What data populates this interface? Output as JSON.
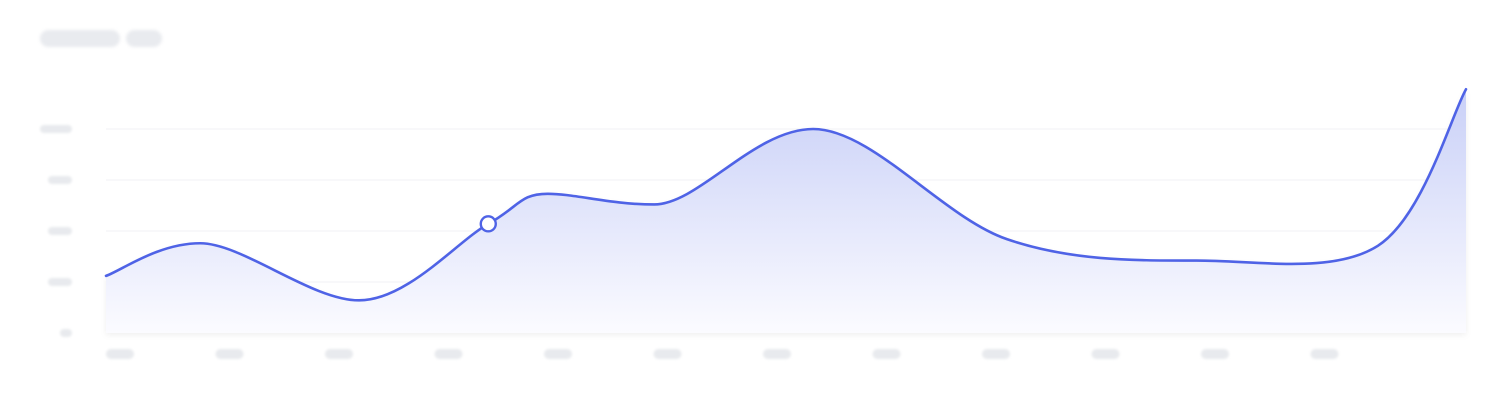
{
  "colors": {
    "accent": "#4f63e6",
    "area_top": "#c9d0f7",
    "area_bottom": "#fbfbff",
    "skeleton": "#e8eaee",
    "grid": "#f1f2f5"
  },
  "header": {
    "title_placeholder": [
      "text-skeleton",
      "text-skeleton"
    ]
  },
  "chart_data": {
    "type": "area",
    "smooth": true,
    "grid": true,
    "legend": "none",
    "ylim": [
      0,
      4
    ],
    "x": [
      0,
      0.92,
      2.47,
      3.73,
      4.31,
      5.35,
      6.9,
      8.79,
      10.64,
      12.41,
      13.27
    ],
    "values": [
      1.12,
      1.76,
      0.64,
      2.14,
      2.73,
      2.52,
      4.0,
      1.84,
      1.42,
      1.71,
      4.78
    ],
    "highlight_index": 3,
    "y_ticks_count": 5,
    "x_ticks_count": 12
  }
}
